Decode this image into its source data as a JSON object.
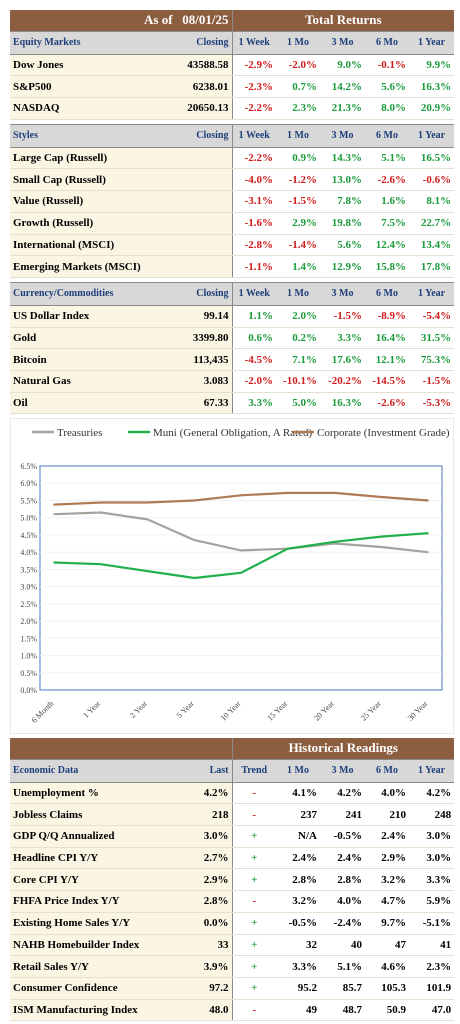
{
  "top": {
    "as_of_label": "As of",
    "as_of_date": "08/01/25",
    "total_returns": "Total Returns",
    "sections": [
      {
        "name": "Equity Markets",
        "cols": [
          "Closing",
          "1 Week",
          "1 Mo",
          "3 Mo",
          "6 Mo",
          "1 Year"
        ],
        "rows": [
          {
            "label": "Dow Jones",
            "closing": "43588.58",
            "vals": [
              "-2.9%",
              "-2.0%",
              "9.0%",
              "-0.1%",
              "9.9%"
            ]
          },
          {
            "label": "S&P500",
            "closing": "6238.01",
            "vals": [
              "-2.3%",
              "0.7%",
              "14.2%",
              "5.6%",
              "16.3%"
            ]
          },
          {
            "label": "NASDAQ",
            "closing": "20650.13",
            "vals": [
              "-2.2%",
              "2.3%",
              "21.3%",
              "8.0%",
              "20.9%"
            ]
          }
        ]
      },
      {
        "name": "Styles",
        "cols": [
          "Closing",
          "1 Week",
          "1 Mo",
          "3 Mo",
          "6 Mo",
          "1 Year"
        ],
        "rows": [
          {
            "label": "Large Cap (Russell)",
            "closing": "",
            "vals": [
              "-2.2%",
              "0.9%",
              "14.3%",
              "5.1%",
              "16.5%"
            ]
          },
          {
            "label": "Small Cap (Russell)",
            "closing": "",
            "vals": [
              "-4.0%",
              "-1.2%",
              "13.0%",
              "-2.6%",
              "-0.6%"
            ]
          },
          {
            "label": "Value (Russell)",
            "closing": "",
            "vals": [
              "-3.1%",
              "-1.5%",
              "7.8%",
              "1.6%",
              "8.1%"
            ]
          },
          {
            "label": "Growth (Russell)",
            "closing": "",
            "vals": [
              "-1.6%",
              "2.9%",
              "19.8%",
              "7.5%",
              "22.7%"
            ]
          },
          {
            "label": "International (MSCI)",
            "closing": "",
            "vals": [
              "-2.8%",
              "-1.4%",
              "5.6%",
              "12.4%",
              "13.4%"
            ]
          },
          {
            "label": "Emerging Markets (MSCI)",
            "closing": "",
            "vals": [
              "-1.1%",
              "1.4%",
              "12.9%",
              "15.8%",
              "17.8%"
            ]
          }
        ]
      },
      {
        "name": "Currency/Commodities",
        "cols": [
          "Closing",
          "1 Week",
          "1 Mo",
          "3 Mo",
          "6 Mo",
          "1 Year"
        ],
        "rows": [
          {
            "label": "US Dollar Index",
            "closing": "99.14",
            "vals": [
              "1.1%",
              "2.0%",
              "-1.5%",
              "-8.9%",
              "-5.4%"
            ]
          },
          {
            "label": "Gold",
            "closing": "3399.80",
            "vals": [
              "0.6%",
              "0.2%",
              "3.3%",
              "16.4%",
              "31.5%"
            ]
          },
          {
            "label": "Bitcoin",
            "closing": "113,435",
            "vals": [
              "-4.5%",
              "7.1%",
              "17.6%",
              "12.1%",
              "75.3%"
            ]
          },
          {
            "label": "Natural Gas",
            "closing": "3.083",
            "vals": [
              "-2.0%",
              "-10.1%",
              "-20.2%",
              "-14.5%",
              "-1.5%"
            ]
          },
          {
            "label": "Oil",
            "closing": "67.33",
            "vals": [
              "3.3%",
              "5.0%",
              "16.3%",
              "-2.6%",
              "-5.3%"
            ]
          }
        ]
      }
    ]
  },
  "chart_data": {
    "type": "line",
    "categories": [
      "6 Month",
      "1 Year",
      "2 Year",
      "5 Year",
      "10 Year",
      "15 Year",
      "20 Year",
      "25 Year",
      "30 Year"
    ],
    "series": [
      {
        "name": "Treasuries",
        "color": "#a8a29d",
        "values": [
          5.1,
          5.15,
          4.95,
          4.35,
          4.05,
          4.1,
          4.25,
          4.15,
          4.0
        ]
      },
      {
        "name": "Muni (General Obligation, A Rated)",
        "color": "#22b04b",
        "values": [
          3.7,
          3.65,
          3.45,
          3.25,
          3.4,
          4.1,
          4.3,
          4.45,
          4.55
        ]
      },
      {
        "name": "Corporate (Investment Grade)",
        "color": "#b07a55",
        "values": [
          5.38,
          5.44,
          5.44,
          5.5,
          5.65,
          5.72,
          5.72,
          5.6,
          5.5
        ]
      }
    ],
    "yticks": [
      "0.0%",
      "0.5%",
      "1.0%",
      "1.5%",
      "2.0%",
      "2.5%",
      "3.0%",
      "3.5%",
      "4.0%",
      "4.5%",
      "5.0%",
      "5.5%",
      "6.0%",
      "6.5%"
    ],
    "ylim": [
      0,
      6.5
    ],
    "legend": "top",
    "grid": true
  },
  "bottom": {
    "historical": "Historical Readings",
    "cols": [
      "Economic Data",
      "Last",
      "Trend",
      "1 Mo",
      "3 Mo",
      "6 Mo",
      "1 Year"
    ],
    "rows": [
      {
        "label": "Unemployment %",
        "last": "4.2%",
        "trend": "-",
        "vals": [
          "4.1%",
          "4.2%",
          "4.0%",
          "4.2%"
        ]
      },
      {
        "label": "Jobless Claims",
        "last": "218",
        "trend": "-",
        "vals": [
          "237",
          "241",
          "210",
          "248"
        ]
      },
      {
        "label": "GDP Q/Q Annualized",
        "last": "3.0%",
        "trend": "+",
        "vals": [
          "N/A",
          "-0.5%",
          "2.4%",
          "3.0%"
        ]
      },
      {
        "label": "Headline CPI Y/Y",
        "last": "2.7%",
        "trend": "+",
        "vals": [
          "2.4%",
          "2.4%",
          "2.9%",
          "3.0%"
        ]
      },
      {
        "label": "Core CPI Y/Y",
        "last": "2.9%",
        "trend": "+",
        "vals": [
          "2.8%",
          "2.8%",
          "3.2%",
          "3.3%"
        ]
      },
      {
        "label": "FHFA Price Index Y/Y",
        "last": "2.8%",
        "trend": "-",
        "vals": [
          "3.2%",
          "4.0%",
          "4.7%",
          "5.9%"
        ]
      },
      {
        "label": "Existing Home Sales Y/Y",
        "last": "0.0%",
        "trend": "+",
        "vals": [
          "-0.5%",
          "-2.4%",
          "9.7%",
          "-5.1%"
        ]
      },
      {
        "label": "NAHB Homebuilder Index",
        "last": "33",
        "trend": "+",
        "vals": [
          "32",
          "40",
          "47",
          "41"
        ]
      },
      {
        "label": "Retail Sales Y/Y",
        "last": "3.9%",
        "trend": "+",
        "vals": [
          "3.3%",
          "5.1%",
          "4.6%",
          "2.3%"
        ]
      },
      {
        "label": "Consumer Confidence",
        "last": "97.2",
        "trend": "+",
        "vals": [
          "95.2",
          "85.7",
          "105.3",
          "101.9"
        ]
      },
      {
        "label": "ISM Manufacturing Index",
        "last": "48.0",
        "trend": "-",
        "vals": [
          "49",
          "48.7",
          "50.9",
          "47.0"
        ]
      }
    ]
  },
  "colors": {
    "header_brown": "#8c5e40",
    "positive": "#1a9a3b",
    "negative": "#d11a1a",
    "section_text": "#1f3f7a"
  }
}
